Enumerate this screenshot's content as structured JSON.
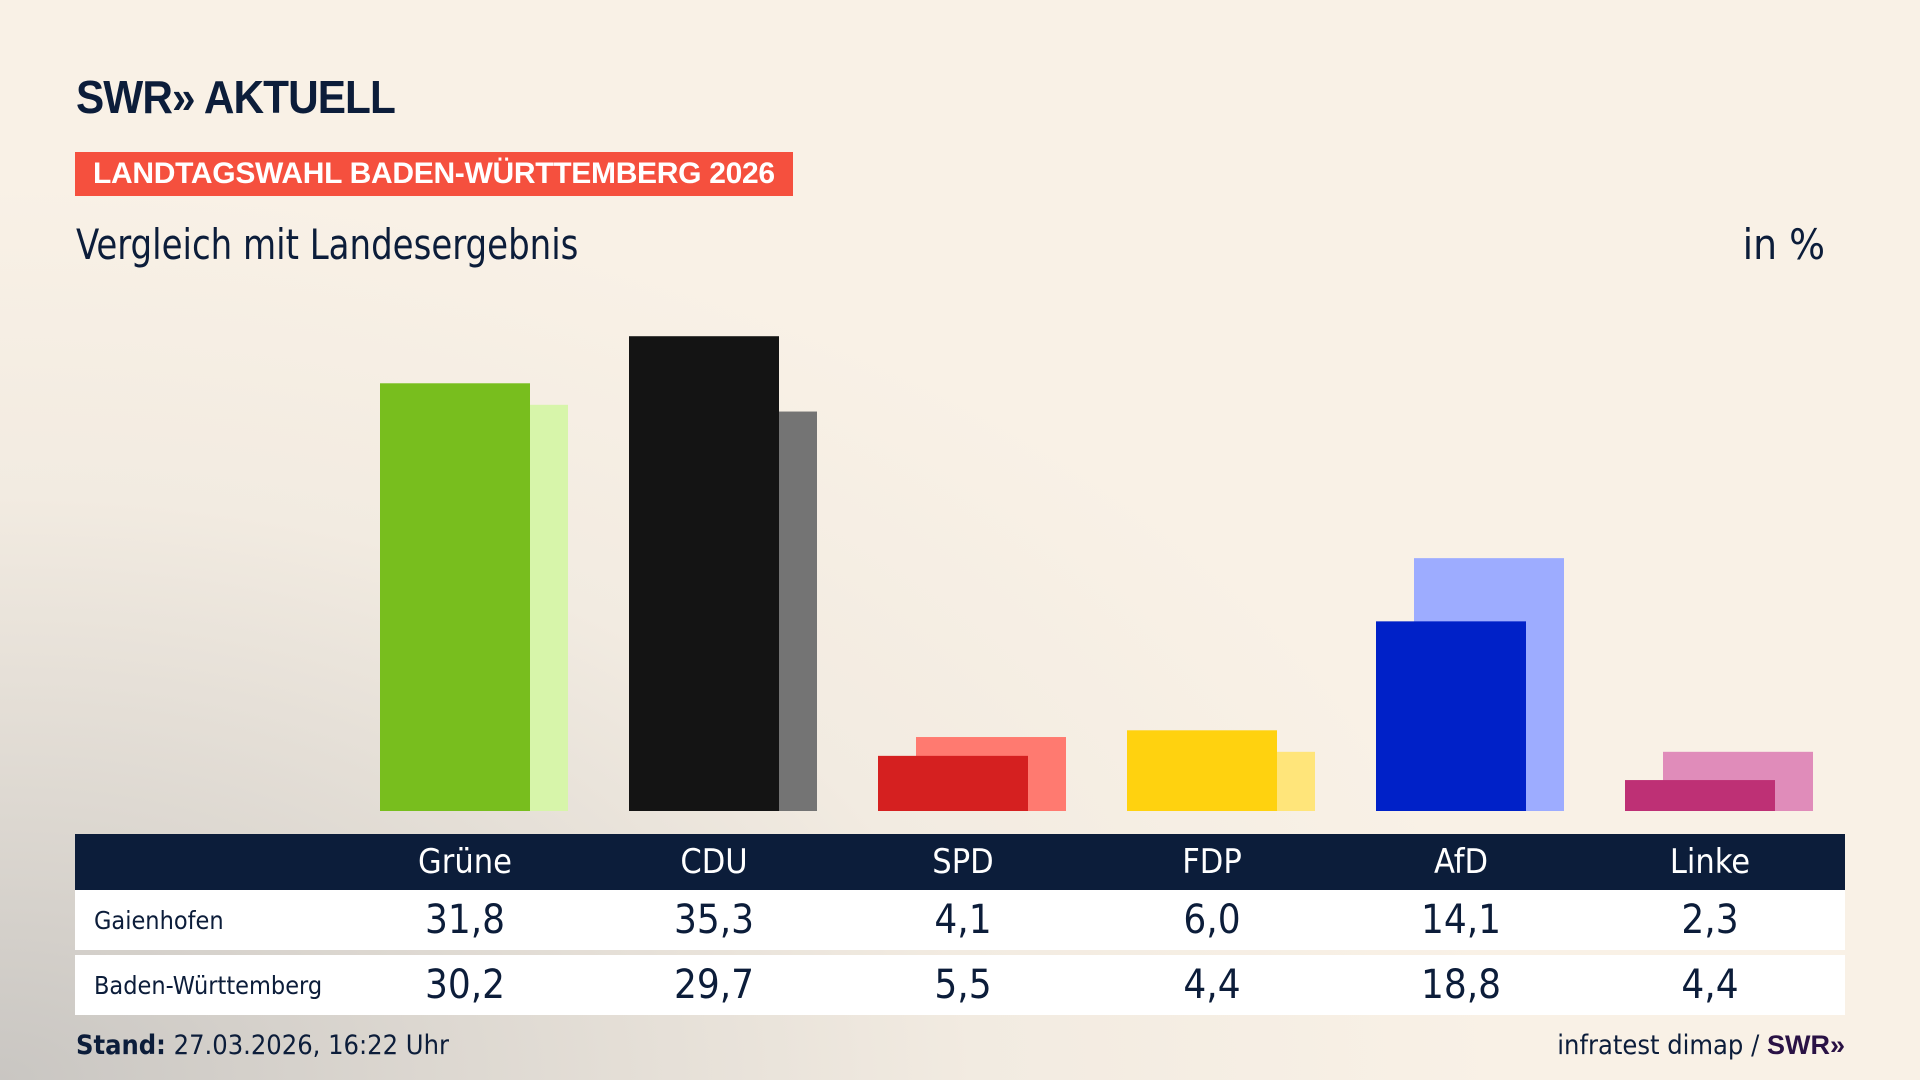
{
  "header": {
    "logo": "SWR» AKTUELL",
    "banner": "LANDTAGSWAHL BADEN-WÜRTTEMBERG 2026",
    "subtitle": "Vergleich mit Landesergebnis",
    "unit": "in %"
  },
  "chart_data": {
    "type": "bar",
    "categories": [
      "Grüne",
      "CDU",
      "SPD",
      "FDP",
      "AfD",
      "Linke"
    ],
    "series": [
      {
        "name": "Gaienhofen",
        "values": [
          31.8,
          35.3,
          4.1,
          6.0,
          14.1,
          2.3
        ],
        "labels": [
          "31,8",
          "35,3",
          "4,1",
          "6,0",
          "14,1",
          "2,3"
        ],
        "colors": [
          "#78be1e",
          "#141414",
          "#d52020",
          "#ffd20f",
          "#0021c8",
          "#be3075"
        ]
      },
      {
        "name": "Baden-Württemberg",
        "values": [
          30.2,
          29.7,
          5.5,
          4.4,
          18.8,
          4.4
        ],
        "labels": [
          "30,2",
          "29,7",
          "5,5",
          "4,4",
          "18,8",
          "4,4"
        ],
        "colors": [
          "#d7f5aa",
          "#747474",
          "#ff7a70",
          "#ffe57a",
          "#9dacff",
          "#e08cba"
        ]
      }
    ],
    "ylim": [
      0,
      36
    ],
    "grid": false
  },
  "footer": {
    "stand_label": "Stand:",
    "stand_value": "27.03.2026, 16:22 Uhr",
    "source": "infratest dimap /",
    "source_logo": "SWR»"
  }
}
